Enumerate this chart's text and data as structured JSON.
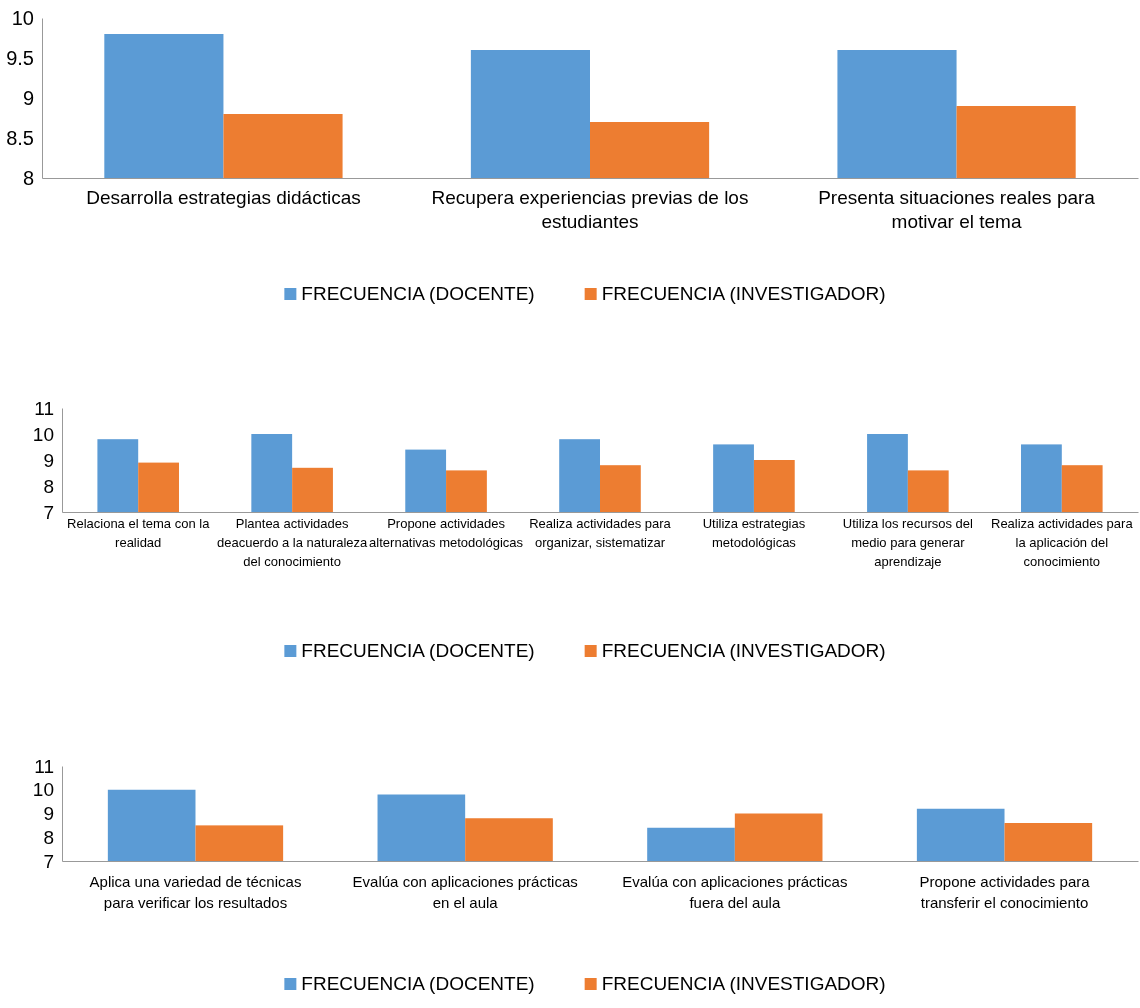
{
  "chart_data": [
    {
      "type": "bar",
      "categories": [
        "Desarrolla estrategias didácticas",
        "Recupera experiencias previas de los estudiantes",
        "Presenta situaciones reales para motivar el tema"
      ],
      "series": [
        {
          "name": "FRECUENCIA (DOCENTE)",
          "color": "#5b9bd5",
          "values": [
            9.8,
            9.6,
            9.6
          ]
        },
        {
          "name": "FRECUENCIA (INVESTIGADOR)",
          "color": "#ed7d31",
          "values": [
            8.8,
            8.7,
            8.9
          ]
        }
      ],
      "ylim": [
        8,
        10
      ],
      "yticks": [
        8,
        8.5,
        9,
        9.5,
        10
      ],
      "grid": false,
      "legend": "bottom"
    },
    {
      "type": "bar",
      "categories": [
        "Relaciona el tema con la realidad",
        "Plantea actividades deacuerdo a la naturaleza del conocimiento",
        "Propone actividades alternativas metodológicas",
        "Realiza actividades para organizar, sistematizar",
        "Utiliza estrategias metodológicas",
        "Utiliza los recursos del medio para generar aprendizaje",
        "Realiza actividades para la aplicación del conocimiento"
      ],
      "series": [
        {
          "name": "FRECUENCIA (DOCENTE)",
          "color": "#5b9bd5",
          "values": [
            9.8,
            10,
            9.4,
            9.8,
            9.6,
            10,
            9.6
          ]
        },
        {
          "name": "FRECUENCIA (INVESTIGADOR)",
          "color": "#ed7d31",
          "values": [
            8.9,
            8.7,
            8.6,
            8.8,
            9.0,
            8.6,
            8.8
          ]
        }
      ],
      "ylim": [
        7,
        11
      ],
      "yticks": [
        7,
        8,
        9,
        10,
        11
      ],
      "grid": false,
      "legend": "bottom"
    },
    {
      "type": "bar",
      "categories": [
        "Aplica una variedad de técnicas para verificar los resultados",
        "Evalúa con aplicaciones prácticas en el aula",
        "Evalúa con aplicaciones prácticas fuera del aula",
        "Propone actividades para transferir el conocimiento"
      ],
      "series": [
        {
          "name": "FRECUENCIA (DOCENTE)",
          "color": "#5b9bd5",
          "values": [
            10,
            9.8,
            8.4,
            9.2
          ]
        },
        {
          "name": "FRECUENCIA (INVESTIGADOR)",
          "color": "#ed7d31",
          "values": [
            8.5,
            8.8,
            9.0,
            8.6
          ]
        }
      ],
      "ylim": [
        7,
        11
      ],
      "yticks": [
        7,
        8,
        9,
        10,
        11
      ],
      "grid": false,
      "legend": "bottom"
    }
  ]
}
